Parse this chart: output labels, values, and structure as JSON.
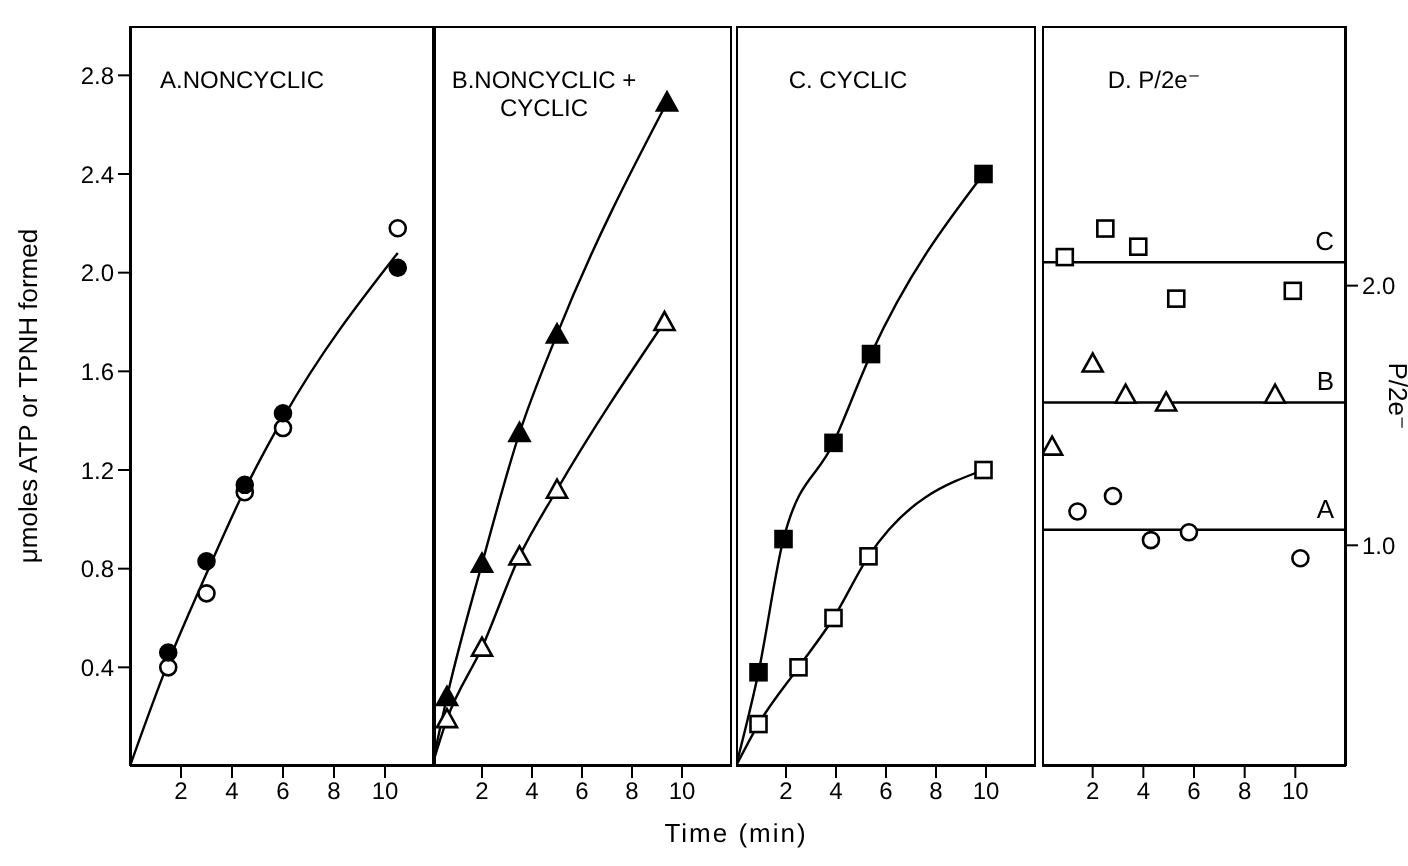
{
  "chart_data": [
    {
      "type": "scatter",
      "title": "A.NONCYCLIC",
      "ylabel": "μmoles ATP or TPNH formed",
      "xlim": [
        0,
        12
      ],
      "xticks": [
        2,
        4,
        6,
        8,
        10
      ],
      "ylim": [
        0,
        3.0
      ],
      "yticks": [
        0.4,
        0.8,
        1.2,
        1.6,
        {
          "value": 2,
          "label": "2.0"
        },
        2.4,
        2.8
      ],
      "series": [
        {
          "color": "#000000",
          "marker": "circle",
          "x": [
            1.5,
            3.0,
            4.5,
            6.0,
            10.5
          ],
          "values": [
            0.46,
            0.83,
            1.14,
            1.43,
            2.02
          ]
        },
        {
          "color": "#ffffff",
          "marker": "circle",
          "x": [
            1.5,
            3.0,
            4.5,
            6.0,
            10.5
          ],
          "values": [
            0.4,
            0.7,
            1.11,
            1.37,
            2.18
          ]
        },
        {
          "type": "line",
          "color": "#000000",
          "x": [
            0,
            1.5,
            3.0,
            4.5,
            6.0,
            10.5
          ],
          "values": [
            0,
            0.42,
            0.78,
            1.12,
            1.41,
            2.08
          ]
        }
      ]
    },
    {
      "type": "scatter",
      "title": "B.NONCYCLIC + CYCLIC",
      "xlabel": "Time (min)",
      "xlim": [
        0,
        12
      ],
      "xticks": [
        2,
        4,
        6,
        8,
        10
      ],
      "ylim": [
        0,
        3.0
      ],
      "yticks": [
        0.4,
        0.8,
        1.2,
        1.6,
        2,
        2.4,
        2.8
      ],
      "tick_labels": "x",
      "series": [
        {
          "color": "#000000",
          "marker": "triangle",
          "x": [
            0.6,
            2.0,
            3.5,
            5.0,
            9.4
          ],
          "values": [
            0.28,
            0.82,
            1.35,
            1.75,
            2.69
          ]
        },
        {
          "color": "#ffffff",
          "marker": "triangle",
          "x": [
            0.6,
            2.0,
            3.5,
            5.0,
            9.3
          ],
          "values": [
            0.19,
            0.48,
            0.85,
            1.12,
            1.8
          ]
        },
        {
          "type": "line",
          "color": "#000000",
          "x": [
            0,
            0.6,
            2.0,
            3.5,
            5.0,
            9.4
          ],
          "values": [
            0,
            0.28,
            0.82,
            1.35,
            1.75,
            2.69
          ]
        },
        {
          "type": "line",
          "color": "#000000",
          "x": [
            0,
            0.6,
            2.0,
            3.5,
            5.0,
            9.3
          ],
          "values": [
            0,
            0.19,
            0.48,
            0.85,
            1.12,
            1.8
          ]
        }
      ]
    },
    {
      "type": "scatter",
      "title": "C. CYCLIC",
      "xlim": [
        0,
        12
      ],
      "xticks": [
        2,
        4,
        6,
        8,
        10
      ],
      "ylim": [
        0,
        3.0
      ],
      "yticks": [
        0.4,
        0.8,
        1.2,
        1.6,
        2,
        2.4,
        2.8
      ],
      "tick_labels": "x",
      "series": [
        {
          "color": "#000000",
          "marker": "square",
          "x": [
            0.9,
            1.9,
            3.9,
            5.4,
            9.9
          ],
          "values": [
            0.38,
            0.92,
            1.31,
            1.67,
            2.4
          ]
        },
        {
          "color": "#ffffff",
          "marker": "square",
          "x": [
            0.9,
            2.5,
            3.9,
            5.3,
            9.9
          ],
          "values": [
            0.17,
            0.4,
            0.6,
            0.85,
            1.2
          ]
        },
        {
          "type": "line",
          "color": "#000000",
          "x": [
            0,
            0.9,
            1.9,
            3.9,
            5.4,
            9.9
          ],
          "values": [
            0,
            0.38,
            0.92,
            1.31,
            1.67,
            2.4
          ]
        },
        {
          "type": "line",
          "color": "#000000",
          "x": [
            0,
            0.9,
            2.5,
            3.9,
            5.3,
            9.9
          ],
          "values": [
            0,
            0.17,
            0.4,
            0.6,
            0.85,
            1.2
          ]
        }
      ]
    },
    {
      "type": "scatter",
      "title": "D. P/2e⁻",
      "y2label": "P/2e⁻",
      "xlim": [
        0,
        12
      ],
      "xticks": [
        2,
        4,
        6,
        8,
        10
      ],
      "y2lim": [
        0.15,
        3.0
      ],
      "y2ticks": [
        {
          "value": 1,
          "label": "1.0"
        },
        {
          "value": 2,
          "label": "2.0"
        }
      ],
      "ref_lines": [
        {
          "axis": "y2",
          "value": 2.09,
          "label": "C",
          "color": "#000000"
        },
        {
          "axis": "y2",
          "value": 1.55,
          "label": "B",
          "color": "#000000"
        },
        {
          "axis": "y2",
          "value": 1.06,
          "label": "A",
          "color": "#000000"
        }
      ],
      "series": [
        {
          "color": "#ffffff",
          "marker": "square",
          "axis": "y2",
          "x": [
            0.9,
            2.5,
            3.8,
            5.3,
            9.9
          ],
          "values": [
            2.11,
            2.22,
            2.15,
            1.95,
            1.98
          ]
        },
        {
          "color": "#ffffff",
          "marker": "triangle",
          "axis": "y2",
          "x": [
            0.4,
            2.0,
            3.3,
            4.9,
            9.2
          ],
          "values": [
            1.38,
            1.7,
            1.58,
            1.55,
            1.58
          ]
        },
        {
          "color": "#ffffff",
          "marker": "circle",
          "axis": "y2",
          "x": [
            1.4,
            2.8,
            4.3,
            5.8,
            10.2
          ],
          "values": [
            1.13,
            1.19,
            1.02,
            1.05,
            0.95
          ]
        }
      ]
    }
  ]
}
